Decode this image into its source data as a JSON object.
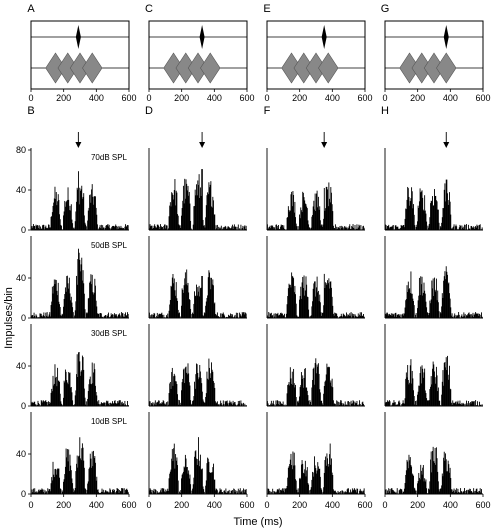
{
  "figure": {
    "y_axis_label": "Impulses/bin",
    "x_axis_label": "Time (ms)",
    "panel_letters": {
      "stimuli": [
        "A",
        "C",
        "E",
        "G"
      ],
      "psth": [
        "B",
        "D",
        "F",
        "H"
      ]
    },
    "level_labels": [
      "70dB SPL",
      "50dB SPL",
      "30dB SPL",
      "10dB SPL"
    ]
  },
  "chart_data": [
    {
      "type": "diagram",
      "description_panels": [
        "A",
        "C",
        "E",
        "G"
      ],
      "x_ticks": [
        0,
        200,
        400,
        600
      ],
      "xlim": [
        0,
        600
      ],
      "masker_bursts_center_ms": [
        [
          150,
          225,
          300,
          375
        ],
        [
          150,
          225,
          300,
          375
        ],
        [
          150,
          225,
          300,
          375
        ],
        [
          150,
          225,
          300,
          375
        ]
      ],
      "probe_center_ms": [
        290,
        325,
        350,
        375
      ]
    },
    {
      "type": "bar",
      "panels": [
        "B",
        "D",
        "F",
        "H"
      ],
      "xlim": [
        0,
        600
      ],
      "ylim": [
        0,
        80
      ],
      "x_ticks": [
        0,
        200,
        400,
        600
      ],
      "y_ticks": [
        0,
        40,
        80
      ],
      "rows": [
        "70dB SPL",
        "50dB SPL",
        "30dB SPL",
        "10dB SPL"
      ],
      "arrow_time_ms": [
        290,
        325,
        350,
        375
      ],
      "burst_centers_ms": [
        150,
        225,
        300,
        375
      ],
      "peak_impulses_per_bin": [
        [
          [
            44,
            44,
            56,
            46
          ],
          [
            46,
            44,
            66,
            46
          ],
          [
            42,
            44,
            66,
            46
          ],
          [
            38,
            48,
            62,
            46
          ]
        ],
        [
          [
            54,
            54,
            58,
            52
          ],
          [
            48,
            50,
            40,
            50
          ],
          [
            40,
            48,
            46,
            50
          ],
          [
            54,
            40,
            58,
            44
          ]
        ],
        [
          [
            42,
            40,
            40,
            48
          ],
          [
            48,
            46,
            42,
            50
          ],
          [
            42,
            40,
            48,
            48
          ],
          [
            48,
            40,
            40,
            56
          ]
        ],
        [
          [
            48,
            44,
            48,
            48
          ],
          [
            50,
            48,
            44,
            52
          ],
          [
            48,
            44,
            46,
            52
          ],
          [
            40,
            30,
            52,
            46
          ]
        ]
      ]
    }
  ]
}
